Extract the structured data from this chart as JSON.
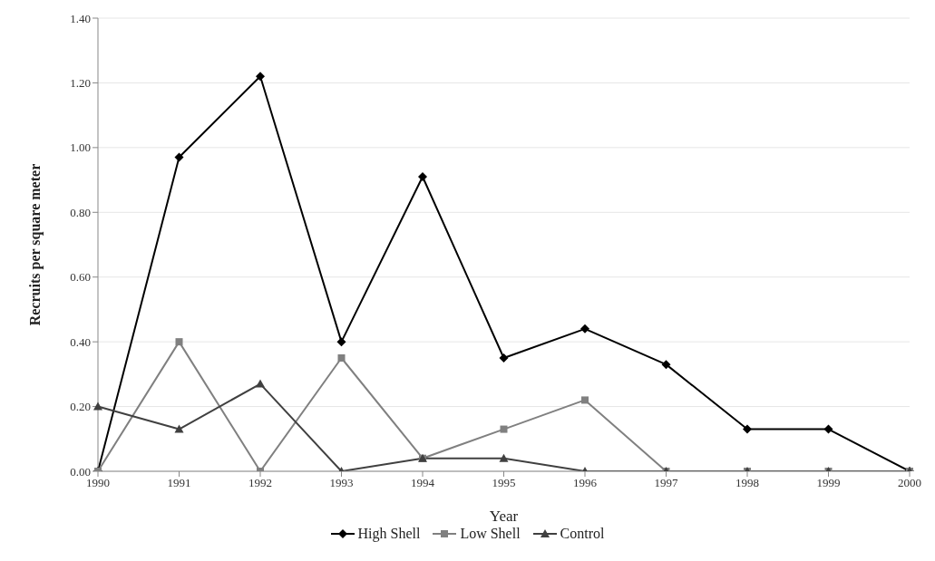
{
  "chart_data": {
    "type": "line",
    "xlabel": "Year",
    "ylabel": "Recruits per square meter",
    "categories": [
      "1990",
      "1991",
      "1992",
      "1993",
      "1994",
      "1995",
      "1996",
      "1997",
      "1998",
      "1999",
      "2000"
    ],
    "series": [
      {
        "name": "High Shell",
        "color": "#000000",
        "marker": "diamond",
        "values": [
          0,
          0.97,
          1.22,
          0.4,
          0.91,
          0.35,
          0.44,
          0.33,
          0.13,
          0.13,
          0
        ]
      },
      {
        "name": "Low Shell",
        "color": "#808080",
        "marker": "square",
        "values": [
          0,
          0.4,
          0,
          0.35,
          0.04,
          0.13,
          0.22,
          0,
          0,
          0,
          0
        ]
      },
      {
        "name": "Control",
        "color": "#404040",
        "marker": "triangle",
        "values": [
          0.2,
          0.13,
          0.27,
          0,
          0.04,
          0.04,
          0,
          0,
          0,
          0,
          0
        ]
      }
    ],
    "ylim": [
      0,
      1.4
    ],
    "yticks": [
      {
        "value": 0,
        "label": "0.00"
      },
      {
        "value": 0.2,
        "label": "0.20"
      },
      {
        "value": 0.4,
        "label": "0.40"
      },
      {
        "value": 0.6,
        "label": "0.60"
      },
      {
        "value": 0.8,
        "label": "0.80"
      },
      {
        "value": 1,
        "label": "1.00"
      },
      {
        "value": 1.2,
        "label": "1.20"
      },
      {
        "value": 1.4,
        "label": "1.40"
      }
    ],
    "grid": "y",
    "legend": "bottom"
  }
}
